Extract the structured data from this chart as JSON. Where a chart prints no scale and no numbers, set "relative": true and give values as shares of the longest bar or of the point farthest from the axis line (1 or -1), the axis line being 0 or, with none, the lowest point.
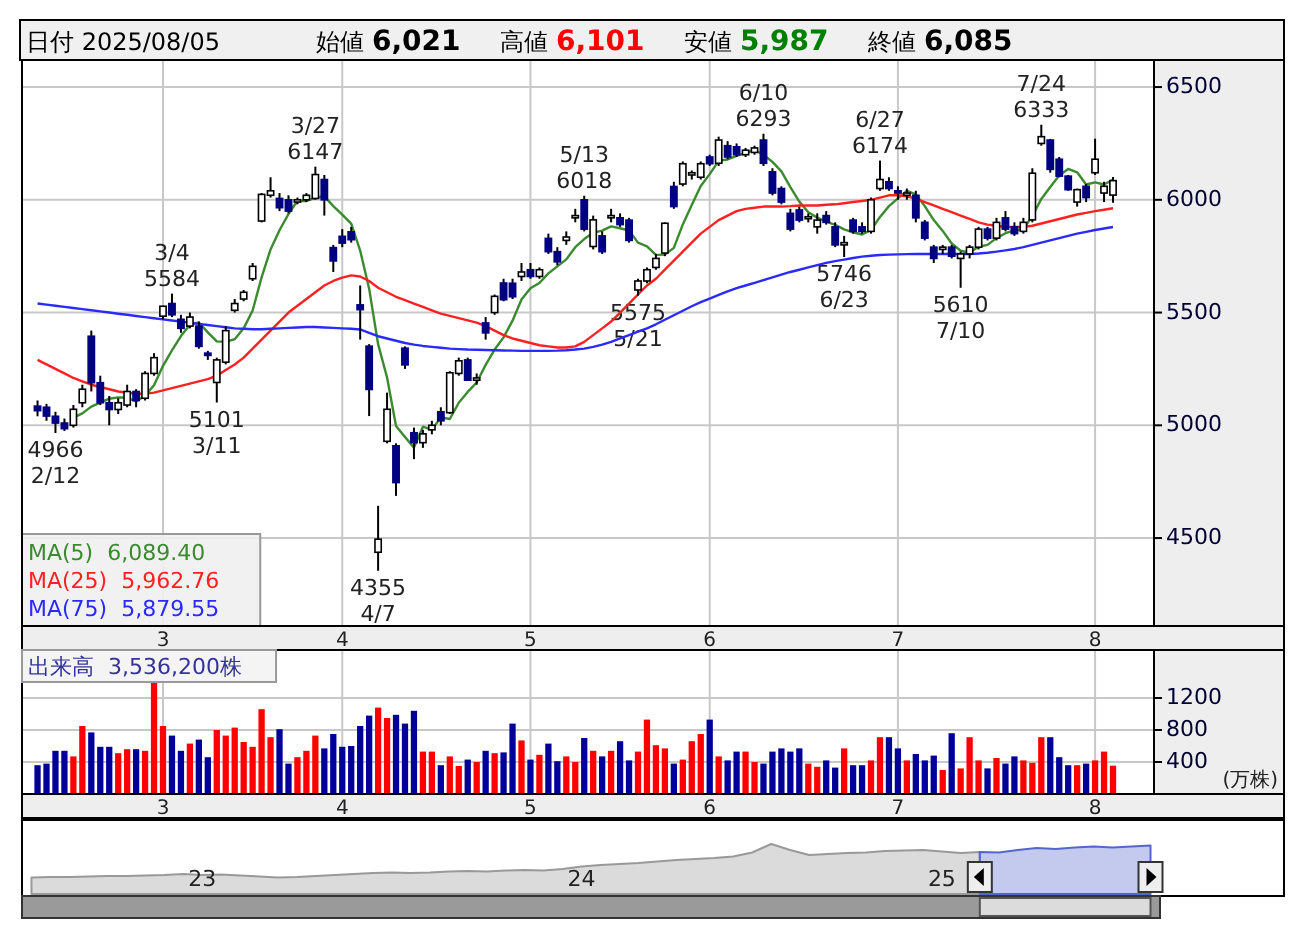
{
  "chart_data": [
    {
      "type": "candlestick",
      "title": "日付 2025/08/05",
      "annotations": [
        "始値 6,021",
        "高値 6,101",
        "安値 5,987",
        "終値 6,085",
        {
          "text": "4966\n2/12",
          "y": 4966
        },
        {
          "text": "3/4\n5584",
          "y": 5584
        },
        {
          "text": "5101\n3/11",
          "y": 5101
        },
        {
          "text": "3/27\n6147",
          "y": 6147
        },
        {
          "text": "4355\n4/7",
          "y": 4355
        },
        {
          "text": "5/13\n6018",
          "y": 6018
        },
        {
          "text": "5575\n5/21",
          "y": 5575
        },
        {
          "text": "6/10\n6293",
          "y": 6293
        },
        {
          "text": "5746\n6/23",
          "y": 5746
        },
        {
          "text": "6/27\n6174",
          "y": 6174
        },
        {
          "text": "5610\n7/10",
          "y": 5610
        },
        {
          "text": "7/24\n6333",
          "y": 6333
        }
      ],
      "categories": [
        null,
        null,
        null,
        null,
        null,
        null,
        null,
        null,
        null,
        null,
        null,
        null,
        null,
        null,
        "3",
        null,
        null,
        null,
        null,
        null,
        null,
        null,
        null,
        null,
        null,
        null,
        null,
        null,
        null,
        null,
        null,
        null,
        null,
        null,
        "4",
        null,
        null,
        null,
        null,
        null,
        null,
        null,
        null,
        null,
        null,
        null,
        null,
        null,
        null,
        null,
        null,
        null,
        null,
        null,
        null,
        "5",
        null,
        null,
        null,
        null,
        null,
        null,
        null,
        null,
        null,
        null,
        null,
        null,
        null,
        null,
        null,
        null,
        null,
        null,
        null,
        "6",
        null,
        null,
        null,
        null,
        null,
        null,
        null,
        null,
        null,
        null,
        null,
        null,
        null,
        null,
        null,
        null,
        null,
        null,
        null,
        null,
        "7",
        null,
        null,
        null,
        null,
        null,
        null,
        null,
        null,
        null,
        null,
        null,
        null,
        null,
        null,
        null,
        null,
        null,
        null,
        null,
        null,
        null,
        "8",
        null,
        null
      ],
      "ohlc": [
        [
          5085,
          5110,
          5040,
          5065
        ],
        [
          5080,
          5095,
          5020,
          5041
        ],
        [
          5040,
          5060,
          4966,
          5010
        ],
        [
          5010,
          5030,
          4975,
          4985
        ],
        [
          5000,
          5090,
          4990,
          5071
        ],
        [
          5100,
          5180,
          5080,
          5160
        ],
        [
          5395,
          5420,
          5150,
          5189
        ],
        [
          5189,
          5220,
          5090,
          5100
        ],
        [
          5100,
          5130,
          5000,
          5070
        ],
        [
          5070,
          5120,
          5050,
          5100
        ],
        [
          5090,
          5180,
          5080,
          5150
        ],
        [
          5150,
          5160,
          5080,
          5110
        ],
        [
          5120,
          5240,
          5110,
          5230
        ],
        [
          5230,
          5320,
          5220,
          5300
        ],
        [
          5484,
          5530,
          5470,
          5528
        ],
        [
          5540,
          5584,
          5480,
          5490
        ],
        [
          5470,
          5490,
          5410,
          5430
        ],
        [
          5440,
          5500,
          5430,
          5480
        ],
        [
          5440,
          5460,
          5340,
          5350
        ],
        [
          5320,
          5330,
          5290,
          5310
        ],
        [
          5190,
          5300,
          5101,
          5290
        ],
        [
          5280,
          5440,
          5270,
          5420
        ],
        [
          5510,
          5560,
          5500,
          5540
        ],
        [
          5560,
          5600,
          5550,
          5590
        ],
        [
          5650,
          5720,
          5640,
          5705
        ],
        [
          5906,
          6030,
          5900,
          6024
        ],
        [
          6020,
          6100,
          6010,
          6040
        ],
        [
          6006,
          6030,
          5950,
          5965
        ],
        [
          6000,
          6020,
          5940,
          5950
        ],
        [
          5990,
          6010,
          5980,
          6000
        ],
        [
          6000,
          6030,
          5990,
          6020
        ],
        [
          6006,
          6147,
          6000,
          6112
        ],
        [
          6090,
          6110,
          5930,
          6000
        ],
        [
          5788,
          5800,
          5680,
          5729
        ],
        [
          5838,
          5870,
          5790,
          5808
        ],
        [
          5858,
          5880,
          5810,
          5823
        ],
        [
          5534,
          5620,
          5380,
          5513
        ],
        [
          5351,
          5360,
          5041,
          5159
        ],
        [
          4437,
          4643,
          4355,
          4495
        ],
        [
          4929,
          5145,
          4920,
          5071
        ],
        [
          4909,
          4920,
          4687,
          4746
        ],
        [
          5342,
          5350,
          5250,
          5268
        ],
        [
          4967,
          4990,
          4850,
          4923
        ],
        [
          4923,
          4980,
          4900,
          4962
        ],
        [
          4980,
          5020,
          4960,
          5000
        ],
        [
          5060,
          5080,
          5000,
          5020
        ],
        [
          5056,
          5240,
          5050,
          5233
        ],
        [
          5230,
          5300,
          5220,
          5286
        ],
        [
          5290,
          5300,
          5200,
          5200
        ],
        [
          5200,
          5230,
          5180,
          5210
        ],
        [
          5454,
          5480,
          5380,
          5410
        ],
        [
          5500,
          5580,
          5490,
          5572
        ],
        [
          5631,
          5650,
          5550,
          5557
        ],
        [
          5630,
          5650,
          5560,
          5570
        ],
        [
          5660,
          5720,
          5640,
          5680
        ],
        [
          5690,
          5720,
          5650,
          5660
        ],
        [
          5660,
          5700,
          5650,
          5690
        ],
        [
          5829,
          5850,
          5760,
          5770
        ],
        [
          5770,
          5790,
          5710,
          5725
        ],
        [
          5820,
          5860,
          5800,
          5835
        ],
        [
          5920,
          5960,
          5900,
          5930
        ],
        [
          6000,
          6018,
          5860,
          5870
        ],
        [
          5793,
          5930,
          5780,
          5911
        ],
        [
          5840,
          5860,
          5760,
          5770
        ],
        [
          5920,
          5960,
          5900,
          5930
        ],
        [
          5920,
          5940,
          5880,
          5890
        ],
        [
          5910,
          5920,
          5810,
          5820
        ],
        [
          5600,
          5650,
          5575,
          5640
        ],
        [
          5640,
          5700,
          5630,
          5690
        ],
        [
          5700,
          5760,
          5690,
          5740
        ],
        [
          5764,
          5900,
          5750,
          5896
        ],
        [
          6059,
          6080,
          5960,
          5970
        ],
        [
          6070,
          6170,
          6060,
          6160
        ],
        [
          6110,
          6130,
          6090,
          6120
        ],
        [
          6100,
          6170,
          6090,
          6160
        ],
        [
          6190,
          6200,
          6150,
          6160
        ],
        [
          6162,
          6280,
          6150,
          6265
        ],
        [
          6240,
          6260,
          6180,
          6190
        ],
        [
          6235,
          6250,
          6190,
          6200
        ],
        [
          6200,
          6230,
          6190,
          6220
        ],
        [
          6210,
          6240,
          6200,
          6230
        ],
        [
          6265,
          6293,
          6150,
          6162
        ],
        [
          6124,
          6140,
          6020,
          6030
        ],
        [
          6050,
          6060,
          5980,
          5990
        ],
        [
          5940,
          5960,
          5860,
          5870
        ],
        [
          5955,
          5970,
          5900,
          5910
        ],
        [
          5920,
          5940,
          5900,
          5925
        ],
        [
          5880,
          5940,
          5850,
          5910
        ],
        [
          5930,
          5950,
          5890,
          5900
        ],
        [
          5880,
          5900,
          5790,
          5800
        ],
        [
          5800,
          5840,
          5746,
          5810
        ],
        [
          5910,
          5920,
          5850,
          5860
        ],
        [
          5880,
          5900,
          5850,
          5860
        ],
        [
          5860,
          6010,
          5850,
          6000
        ],
        [
          6050,
          6174,
          6040,
          6090
        ],
        [
          6080,
          6100,
          6040,
          6050
        ],
        [
          6040,
          6060,
          6000,
          6030
        ],
        [
          6020,
          6050,
          6000,
          6030
        ],
        [
          6020,
          6040,
          5900,
          5920
        ],
        [
          5900,
          5910,
          5820,
          5830
        ],
        [
          5790,
          5800,
          5720,
          5740
        ],
        [
          5780,
          5800,
          5760,
          5790
        ],
        [
          5790,
          5800,
          5740,
          5750
        ],
        [
          5740,
          5770,
          5610,
          5760
        ],
        [
          5760,
          5800,
          5740,
          5790
        ],
        [
          5790,
          5880,
          5780,
          5870
        ],
        [
          5870,
          5880,
          5820,
          5830
        ],
        [
          5830,
          5920,
          5820,
          5900
        ],
        [
          5920,
          5950,
          5860,
          5870
        ],
        [
          5880,
          5900,
          5840,
          5850
        ],
        [
          5860,
          5920,
          5850,
          5900
        ],
        [
          5911,
          6140,
          5900,
          6118
        ],
        [
          6250,
          6333,
          6240,
          6280
        ],
        [
          6265,
          6270,
          6120,
          6135
        ],
        [
          6180,
          6190,
          6100,
          6105
        ],
        [
          6105,
          6110,
          6040,
          6045
        ],
        [
          5990,
          6050,
          5970,
          6045
        ],
        [
          6060,
          6070,
          5990,
          6010
        ],
        [
          6120,
          6271,
          6110,
          6180
        ],
        [
          6030,
          6080,
          5990,
          6060
        ],
        [
          6021,
          6101,
          5987,
          6085
        ]
      ],
      "series": [
        {
          "type": "line",
          "name": "MA(5)  6,089.40",
          "color": "#3a8a2e",
          "values": [
            null,
            null,
            null,
            null,
            5034,
            5053,
            5083,
            5101,
            5118,
            5124,
            5122,
            5106,
            5132,
            5178,
            5264,
            5332,
            5396,
            5446,
            5456,
            5412,
            5372,
            5370,
            5382,
            5430,
            5509,
            5656,
            5780,
            5865,
            5937,
            5996,
            5995,
            6009,
            6016,
            5972,
            5934,
            5894,
            5775,
            5606,
            5360,
            5212,
            4997,
            4948,
            4901,
            4994,
            4980,
            5035,
            5028,
            5100,
            5148,
            5190,
            5268,
            5336,
            5390,
            5464,
            5558,
            5608,
            5631,
            5674,
            5705,
            5736,
            5790,
            5826,
            5854,
            5863,
            5882,
            5874,
            5864,
            5810,
            5794,
            5756,
            5757,
            5787,
            5891,
            5977,
            6061,
            6114,
            6173,
            6179,
            6195,
            6207,
            6221,
            6200,
            6168,
            6126,
            6056,
            5992,
            5945,
            5921,
            5903,
            5889,
            5869,
            5856,
            5846,
            5866,
            5924,
            5972,
            6006,
            6040,
            6024,
            5972,
            5910,
            5862,
            5806,
            5774,
            5766,
            5792,
            5800,
            5830,
            5852,
            5864,
            5870,
            5928,
            6004,
            6057,
            6108,
            6137,
            6122,
            6068,
            6077,
            6068,
            6089.4
          ]
        },
        {
          "type": "line",
          "name": "MA(25)  5,962.76",
          "color": "#ff2020",
          "values": [
            5290,
            5270,
            5250,
            5230,
            5210,
            5195,
            5180,
            5170,
            5160,
            5150,
            5145,
            5140,
            5140,
            5145,
            5155,
            5165,
            5175,
            5185,
            5195,
            5205,
            5220,
            5245,
            5270,
            5300,
            5340,
            5380,
            5420,
            5460,
            5500,
            5530,
            5560,
            5590,
            5620,
            5640,
            5655,
            5665,
            5660,
            5640,
            5610,
            5590,
            5570,
            5555,
            5540,
            5525,
            5510,
            5495,
            5485,
            5475,
            5465,
            5455,
            5440,
            5420,
            5400,
            5385,
            5375,
            5365,
            5355,
            5350,
            5345,
            5345,
            5350,
            5370,
            5400,
            5430,
            5460,
            5500,
            5540,
            5580,
            5620,
            5650,
            5690,
            5730,
            5770,
            5810,
            5850,
            5880,
            5910,
            5930,
            5950,
            5960,
            5965,
            5970,
            5970,
            5970,
            5972,
            5975,
            5975,
            5975,
            5978,
            5980,
            5985,
            5990,
            5995,
            6000,
            6010,
            6020,
            6020,
            6015,
            6005,
            5990,
            5975,
            5960,
            5945,
            5930,
            5915,
            5900,
            5890,
            5885,
            5880,
            5880,
            5880,
            5885,
            5895,
            5905,
            5915,
            5925,
            5935,
            5942,
            5950,
            5956,
            5962.76
          ]
        },
        {
          "type": "line",
          "name": "MA(75)  5,879.55",
          "color": "#2a2aff",
          "values": [
            5540,
            5535,
            5530,
            5525,
            5520,
            5515,
            5510,
            5505,
            5500,
            5495,
            5490,
            5485,
            5480,
            5475,
            5470,
            5465,
            5460,
            5455,
            5450,
            5445,
            5440,
            5435,
            5430,
            5428,
            5426,
            5426,
            5428,
            5430,
            5432,
            5434,
            5436,
            5436,
            5434,
            5432,
            5430,
            5428,
            5425,
            5410,
            5395,
            5385,
            5375,
            5365,
            5358,
            5352,
            5348,
            5344,
            5340,
            5338,
            5336,
            5335,
            5334,
            5333,
            5332,
            5331,
            5330,
            5330,
            5330,
            5330,
            5331,
            5333,
            5336,
            5340,
            5348,
            5358,
            5370,
            5385,
            5400,
            5415,
            5430,
            5448,
            5468,
            5488,
            5508,
            5528,
            5546,
            5562,
            5578,
            5594,
            5608,
            5620,
            5632,
            5644,
            5656,
            5668,
            5680,
            5690,
            5700,
            5710,
            5720,
            5728,
            5735,
            5742,
            5748,
            5752,
            5755,
            5757,
            5758,
            5759,
            5760,
            5760,
            5760,
            5760,
            5760,
            5760,
            5760,
            5762,
            5765,
            5770,
            5776,
            5782,
            5790,
            5800,
            5810,
            5820,
            5830,
            5840,
            5850,
            5858,
            5866,
            5873,
            5879.55
          ]
        }
      ],
      "ylim": [
        4110,
        6620
      ],
      "yticks": [
        4500,
        5000,
        5500,
        6000,
        6500
      ],
      "grid": true,
      "legend": "bottom left"
    },
    {
      "type": "bar",
      "title": "出来高  3,536,200株",
      "ylabel": "(万株)",
      "categories": [
        null,
        null,
        null,
        null,
        null,
        null,
        null,
        null,
        null,
        null,
        null,
        null,
        null,
        null,
        "3",
        null,
        null,
        null,
        null,
        null,
        null,
        null,
        null,
        null,
        null,
        null,
        null,
        null,
        null,
        null,
        null,
        null,
        null,
        null,
        "4",
        null,
        null,
        null,
        null,
        null,
        null,
        null,
        null,
        null,
        null,
        null,
        null,
        null,
        null,
        null,
        null,
        null,
        null,
        null,
        null,
        "5",
        null,
        null,
        null,
        null,
        null,
        null,
        null,
        null,
        null,
        null,
        null,
        null,
        null,
        null,
        null,
        null,
        null,
        null,
        null,
        "6",
        null,
        null,
        null,
        null,
        null,
        null,
        null,
        null,
        null,
        null,
        null,
        null,
        null,
        null,
        null,
        null,
        null,
        null,
        null,
        null,
        "7",
        null,
        null,
        null,
        null,
        null,
        null,
        null,
        null,
        null,
        null,
        null,
        null,
        null,
        null,
        null,
        null,
        null,
        null,
        null,
        null,
        null,
        "8",
        null,
        null
      ],
      "values": [
        360,
        380,
        540,
        540,
        470,
        850,
        770,
        590,
        590,
        510,
        560,
        560,
        540,
        1440,
        850,
        730,
        540,
        630,
        680,
        460,
        800,
        730,
        830,
        650,
        590,
        1060,
        710,
        810,
        380,
        460,
        540,
        730,
        570,
        750,
        590,
        600,
        850,
        980,
        1080,
        950,
        990,
        880,
        1040,
        530,
        530,
        360,
        470,
        350,
        430,
        400,
        540,
        510,
        520,
        880,
        670,
        430,
        490,
        630,
        410,
        470,
        400,
        700,
        540,
        470,
        540,
        660,
        420,
        530,
        930,
        610,
        570,
        380,
        430,
        660,
        750,
        930,
        470,
        420,
        530,
        530,
        400,
        380,
        530,
        570,
        530,
        570,
        380,
        340,
        420,
        330,
        570,
        360,
        360,
        420,
        710,
        710,
        570,
        420,
        500,
        420,
        480,
        300,
        760,
        320,
        710,
        420,
        320,
        450,
        380,
        470,
        420,
        390,
        710,
        710,
        460,
        360,
        360,
        380,
        420,
        530,
        354
      ],
      "colors": [
        "#000099",
        "#000099",
        "#000099",
        "#000099",
        "#ff0000",
        "#ff0000",
        "#000099",
        "#000099",
        "#000099",
        "#ff0000",
        "#ff0000",
        "#000099",
        "#ff0000",
        "#ff0000",
        "#ff0000",
        "#000099",
        "#000099",
        "#ff0000",
        "#000099",
        "#000099",
        "#ff0000",
        "#ff0000",
        "#ff0000",
        "#ff0000",
        "#ff0000",
        "#ff0000",
        "#ff0000",
        "#000099",
        "#000099",
        "#ff0000",
        "#ff0000",
        "#ff0000",
        "#000099",
        "#000099",
        "#000099",
        "#000099",
        "#000099",
        "#000099",
        "#ff0000",
        "#ff0000",
        "#000099",
        "#000099",
        "#000099",
        "#ff0000",
        "#ff0000",
        "#000099",
        "#ff0000",
        "#ff0000",
        "#000099",
        "#ff0000",
        "#000099",
        "#ff0000",
        "#000099",
        "#000099",
        "#ff0000",
        "#000099",
        "#ff0000",
        "#000099",
        "#000099",
        "#ff0000",
        "#ff0000",
        "#000099",
        "#ff0000",
        "#000099",
        "#ff0000",
        "#000099",
        "#000099",
        "#ff0000",
        "#ff0000",
        "#ff0000",
        "#ff0000",
        "#000099",
        "#ff0000",
        "#ff0000",
        "#ff0000",
        "#000099",
        "#ff0000",
        "#000099",
        "#000099",
        "#ff0000",
        "#ff0000",
        "#000099",
        "#000099",
        "#000099",
        "#000099",
        "#000099",
        "#ff0000",
        "#ff0000",
        "#000099",
        "#000099",
        "#ff0000",
        "#000099",
        "#000099",
        "#ff0000",
        "#ff0000",
        "#000099",
        "#000099",
        "#ff0000",
        "#000099",
        "#000099",
        "#000099",
        "#ff0000",
        "#000099",
        "#ff0000",
        "#ff0000",
        "#ff0000",
        "#000099",
        "#ff0000",
        "#000099",
        "#000099",
        "#ff0000",
        "#ff0000",
        "#ff0000",
        "#000099",
        "#000099",
        "#000099",
        "#ff0000",
        "#000099",
        "#ff0000",
        "#ff0000",
        "#ff0000"
      ],
      "ylim": [
        0,
        1800
      ],
      "yticks": [
        400,
        800,
        1200
      ],
      "grid": true
    },
    {
      "type": "area",
      "relative": true,
      "tick_labels": "x",
      "categories": [
        null,
        null,
        null,
        null,
        null,
        null,
        null,
        null,
        null,
        "23",
        null,
        null,
        null,
        null,
        null,
        null,
        null,
        null,
        null,
        null,
        null,
        null,
        null,
        null,
        null,
        null,
        null,
        null,
        null,
        "24",
        null,
        null,
        null,
        null,
        null,
        null,
        null,
        null,
        null,
        null,
        null,
        null,
        null,
        null,
        null,
        null,
        null,
        null,
        "25",
        null,
        null,
        null,
        null,
        null,
        null,
        null,
        null,
        null,
        null,
        null
      ],
      "series": [
        {
          "color": "#999999",
          "values": [
            0.33,
            0.34,
            0.34,
            0.35,
            0.36,
            0.36,
            0.37,
            0.38,
            0.4,
            0.38,
            0.39,
            0.37,
            0.35,
            0.33,
            0.34,
            0.36,
            0.38,
            0.4,
            0.42,
            0.43,
            0.42,
            0.43,
            0.45,
            0.46,
            0.45,
            0.47,
            0.48,
            0.47,
            0.5,
            0.55,
            0.58,
            0.6,
            0.62,
            0.65,
            0.68,
            0.7,
            0.72,
            0.75,
            0.83,
            1.0,
            0.88,
            0.78,
            0.8,
            0.82,
            0.83,
            0.86,
            0.87,
            0.88,
            0.85,
            0.82,
            0.84,
            null,
            null,
            null,
            null,
            null,
            null,
            null,
            null,
            null
          ]
        },
        {
          "color": "#5566cc",
          "values": [
            null,
            null,
            null,
            null,
            null,
            null,
            null,
            null,
            null,
            null,
            null,
            null,
            null,
            null,
            null,
            null,
            null,
            null,
            null,
            null,
            null,
            null,
            null,
            null,
            null,
            null,
            null,
            null,
            null,
            null,
            null,
            null,
            null,
            null,
            null,
            null,
            null,
            null,
            null,
            null,
            null,
            null,
            null,
            null,
            null,
            null,
            null,
            null,
            null,
            null,
            0.84,
            0.83,
            0.88,
            0.92,
            0.9,
            0.93,
            0.95,
            0.93,
            0.95,
            0.97
          ]
        }
      ]
    }
  ]
}
